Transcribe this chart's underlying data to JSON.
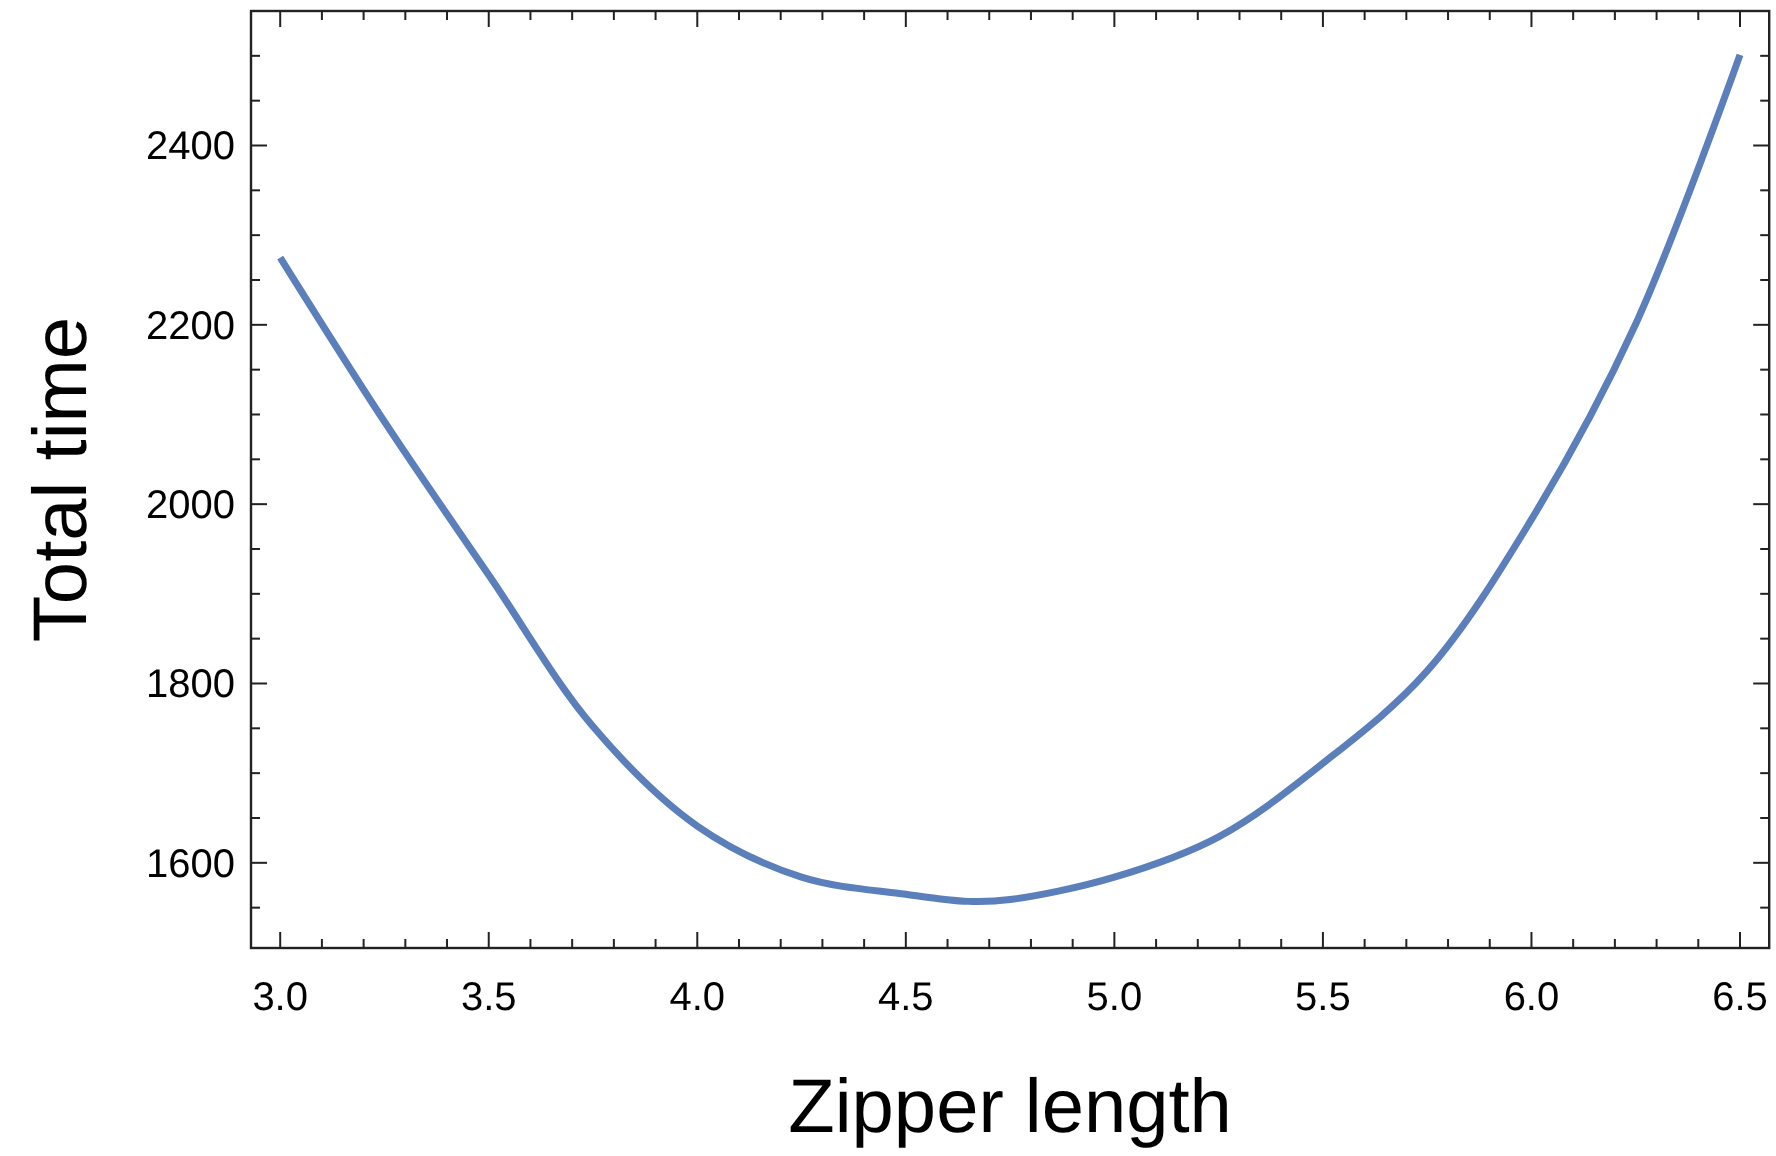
{
  "chart_data": {
    "type": "line",
    "xlabel": "Zipper length",
    "ylabel": "Total time",
    "x": [
      3.0,
      3.25,
      3.5,
      3.75,
      4.0,
      4.25,
      4.5,
      4.65,
      4.75,
      5.0,
      5.25,
      5.5,
      5.75,
      6.0,
      6.25,
      6.5
    ],
    "series": [
      {
        "color": "#5b7fba",
        "values": [
          2275,
          2092,
          1921,
          1752,
          1641,
          1584,
          1565,
          1557,
          1559,
          1584,
          1629,
          1711,
          1814,
          1983,
          2201,
          2501
        ]
      }
    ],
    "xlim": [
      2.93,
      6.57
    ],
    "ylim": [
      1505,
      2550
    ],
    "xticks": [
      {
        "value": 3.0,
        "label": "3.0"
      },
      {
        "value": 3.1,
        "label": null
      },
      {
        "value": 3.2,
        "label": null
      },
      {
        "value": 3.3,
        "label": null
      },
      {
        "value": 3.4,
        "label": null
      },
      3.5,
      {
        "value": 3.6,
        "label": null
      },
      {
        "value": 3.7,
        "label": null
      },
      {
        "value": 3.8,
        "label": null
      },
      {
        "value": 3.9,
        "label": null
      },
      {
        "value": 4.0,
        "label": "4.0"
      },
      {
        "value": 4.1,
        "label": null
      },
      {
        "value": 4.2,
        "label": null
      },
      {
        "value": 4.3,
        "label": null
      },
      {
        "value": 4.4,
        "label": null
      },
      4.5,
      {
        "value": 4.6,
        "label": null
      },
      {
        "value": 4.7,
        "label": null
      },
      {
        "value": 4.8,
        "label": null
      },
      {
        "value": 4.9,
        "label": null
      },
      {
        "value": 5.0,
        "label": "5.0"
      },
      {
        "value": 5.1,
        "label": null
      },
      {
        "value": 5.2,
        "label": null
      },
      {
        "value": 5.3,
        "label": null
      },
      {
        "value": 5.4,
        "label": null
      },
      5.5,
      {
        "value": 5.6,
        "label": null
      },
      {
        "value": 5.7,
        "label": null
      },
      {
        "value": 5.8,
        "label": null
      },
      {
        "value": 5.9,
        "label": null
      },
      {
        "value": 6.0,
        "label": "6.0"
      },
      {
        "value": 6.1,
        "label": null
      },
      {
        "value": 6.2,
        "label": null
      },
      {
        "value": 6.3,
        "label": null
      },
      {
        "value": 6.4,
        "label": null
      },
      6.5
    ],
    "yticks": [
      {
        "value": 1550,
        "label": null
      },
      1600,
      {
        "value": 1650,
        "label": null
      },
      {
        "value": 1700,
        "label": null
      },
      {
        "value": 1750,
        "label": null
      },
      1800,
      {
        "value": 1850,
        "label": null
      },
      {
        "value": 1900,
        "label": null
      },
      {
        "value": 1950,
        "label": null
      },
      2000,
      {
        "value": 2050,
        "label": null
      },
      {
        "value": 2100,
        "label": null
      },
      {
        "value": 2150,
        "label": null
      },
      2200,
      {
        "value": 2250,
        "label": null
      },
      {
        "value": 2300,
        "label": null
      },
      {
        "value": 2350,
        "label": null
      },
      2400,
      {
        "value": 2450,
        "label": null
      },
      {
        "value": 2500,
        "label": null
      }
    ],
    "grid": false,
    "marker": "none",
    "line_style": "solid"
  }
}
